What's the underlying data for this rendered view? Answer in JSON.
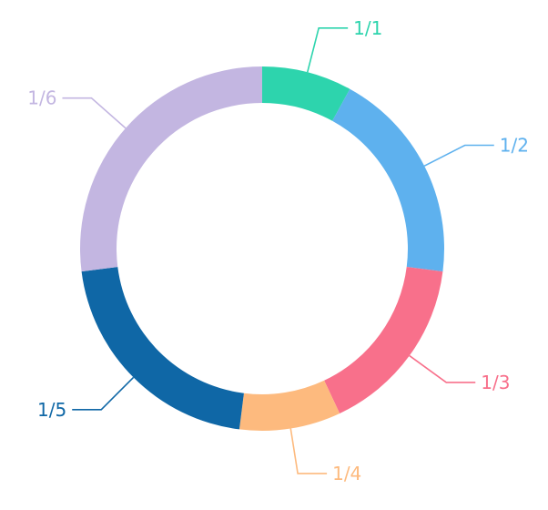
{
  "chart_data": {
    "type": "pie",
    "variant": "donut",
    "title": "",
    "legend": "none",
    "direction": "clockwise",
    "start": "top",
    "slices": [
      {
        "label": "1/1",
        "value": 8,
        "color": "#2dd4ad"
      },
      {
        "label": "1/2",
        "value": 19,
        "color": "#5eb1ee"
      },
      {
        "label": "1/3",
        "value": 16,
        "color": "#f8708b"
      },
      {
        "label": "1/4",
        "value": 9,
        "color": "#fdba7e"
      },
      {
        "label": "1/5",
        "value": 21,
        "color": "#0f67a6"
      },
      {
        "label": "1/6",
        "value": 27,
        "color": "#c3b6e1"
      }
    ]
  }
}
